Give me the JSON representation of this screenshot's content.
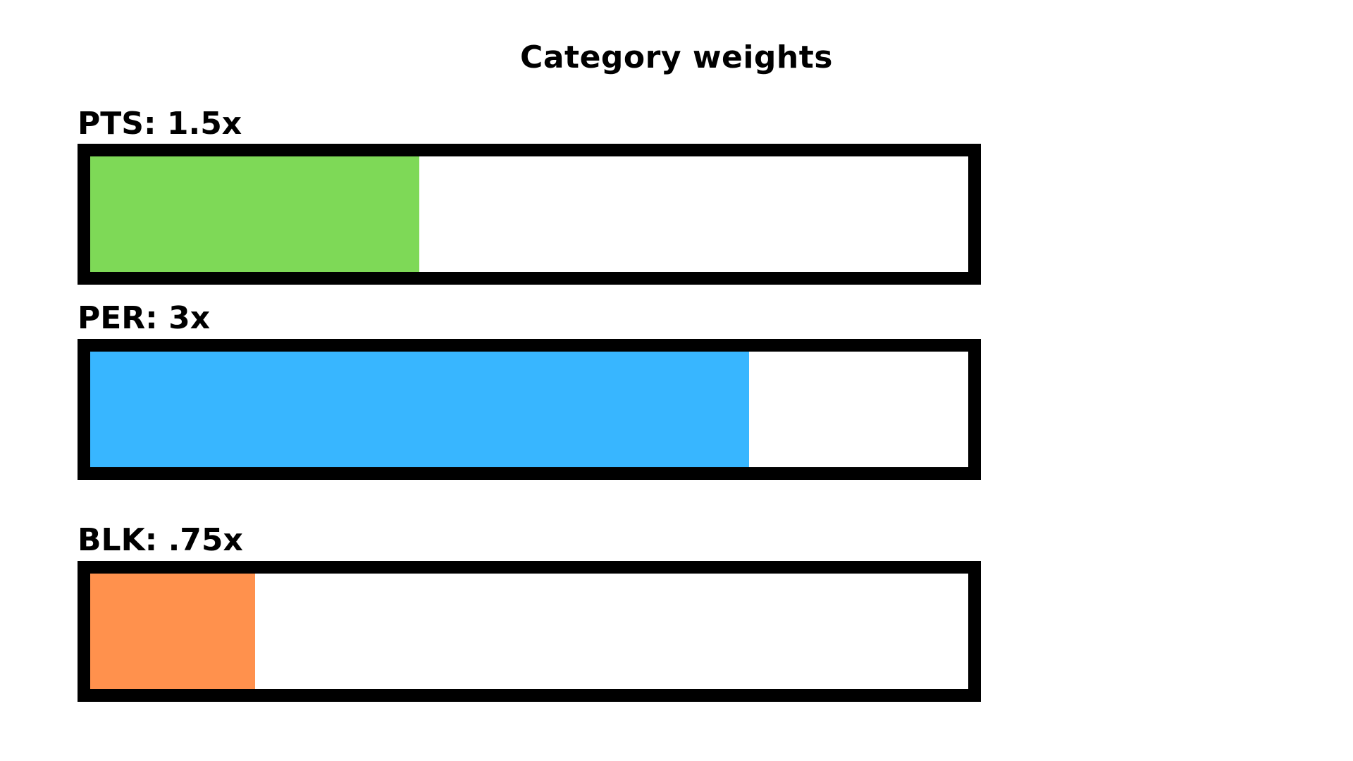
{
  "chart_data": {
    "type": "bar",
    "orientation": "horizontal",
    "title": "Category weights",
    "xlim": [
      0,
      4
    ],
    "rows": [
      {
        "label": "PTS: 1.5x",
        "value": 1.5,
        "color": "#7ed957"
      },
      {
        "label": "PER: 3x",
        "value": 3.0,
        "color": "#38b6ff"
      },
      {
        "label": "BLK: .75x",
        "value": 0.75,
        "color": "#ff914d"
      }
    ],
    "frame_color": "#000000",
    "background_color": "#ffffff"
  }
}
